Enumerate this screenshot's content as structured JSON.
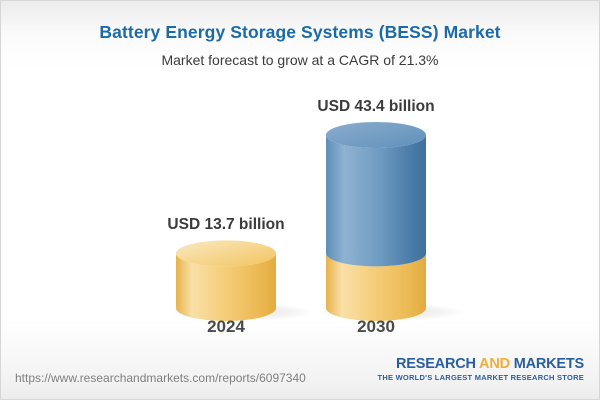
{
  "header": {
    "title": "Battery Energy Storage Systems (BESS) Market",
    "subtitle": "Market forecast to grow at a CAGR of 21.3%"
  },
  "chart_data": {
    "type": "bar",
    "subtype": "3d-cylinder",
    "title": "Battery Energy Storage Systems (BESS) Market",
    "unit": "USD billion",
    "cagr_percent": 21.3,
    "categories": [
      "2024",
      "2030"
    ],
    "values": [
      13.7,
      43.4
    ],
    "ylim": [
      0,
      43.4
    ],
    "grid": "off",
    "legend": "none",
    "bars": [
      {
        "label": "2024",
        "value": 13.7,
        "annotation": "USD 13.7 billion",
        "segments": [
          {
            "name": "base-2024-value",
            "value": 13.7,
            "color": "gold"
          }
        ]
      },
      {
        "label": "2030",
        "value": 43.4,
        "annotation": "USD 43.4 billion",
        "segments": [
          {
            "name": "base-2024-value",
            "value": 13.7,
            "color": "gold"
          },
          {
            "name": "forecast-growth",
            "value": 29.7,
            "color": "blue"
          }
        ]
      }
    ],
    "colors": {
      "gold_mid": "#f6cf7d",
      "gold_edge": "#e7b24a",
      "gold_highlight": "#f9e0a8",
      "blue_mid": "#729ec3",
      "blue_edge": "#40709b",
      "blue_highlight": "#8fb2d2",
      "title_blue": "#1c6ba8",
      "label_dark": "#3b3b3b"
    }
  },
  "footer": {
    "url": "https://www.researchandmarkets.com/reports/6097340",
    "logo": {
      "line1_part1": "RESEARCH",
      "line1_part2": " AND ",
      "line1_part3": "MARKETS",
      "tagline": "THE WORLD'S LARGEST MARKET RESEARCH STORE",
      "brand_blue": "#2b5f9c",
      "brand_gold": "#efaf3b"
    }
  }
}
